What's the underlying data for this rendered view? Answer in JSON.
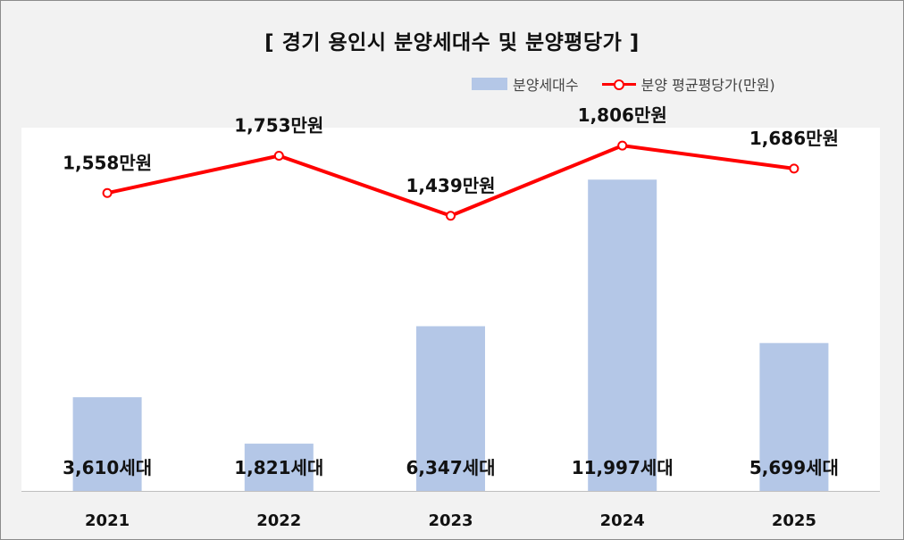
{
  "chart_data": {
    "type": "bar+line",
    "title": "[ 경기 용인시 분양세대수 및 분양평당가 ]",
    "categories": [
      "2021",
      "2022",
      "2023",
      "2024",
      "2025"
    ],
    "series": [
      {
        "name": "분양세대수",
        "type": "bar",
        "values": [
          3610,
          1821,
          6347,
          11997,
          5699
        ],
        "labels": [
          "3,610세대",
          "1,821세대",
          "6,347세대",
          "11,997세대",
          "5,699세대"
        ],
        "color": "#b4c7e7"
      },
      {
        "name": "분양 평균평당가(만원)",
        "type": "line",
        "values": [
          1558,
          1753,
          1439,
          1806,
          1686
        ],
        "labels": [
          "1,558만원",
          "1,753만원",
          "1,439만원",
          "1,806만원",
          "1,686만원"
        ],
        "color": "#ff0000"
      }
    ],
    "bar_ylim": [
      0,
      14000
    ],
    "line_ylim": [
      0,
      1900
    ],
    "grid": false,
    "legend_position": "top-right"
  }
}
